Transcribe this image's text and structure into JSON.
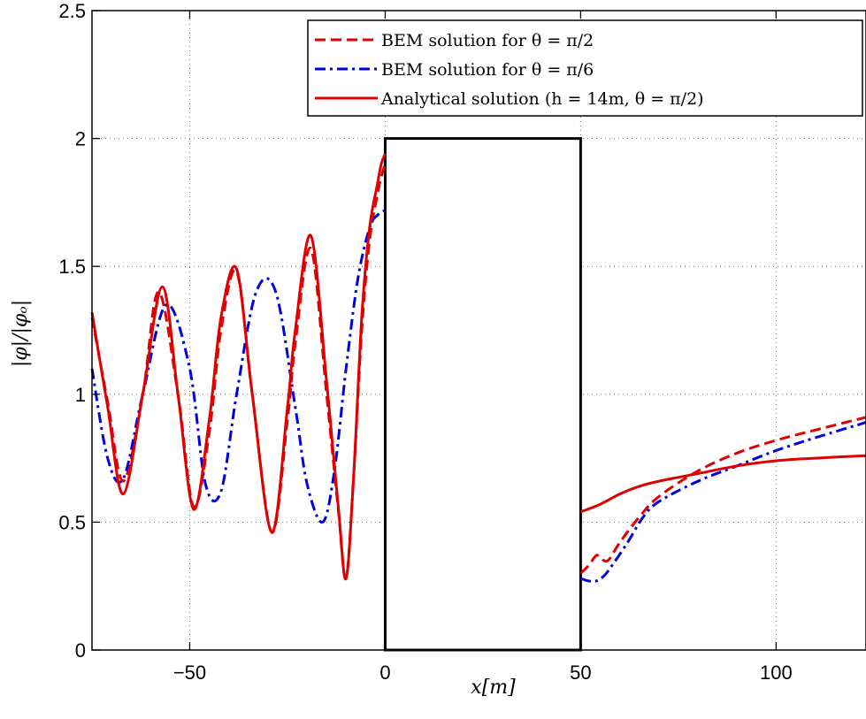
{
  "chart_data": {
    "type": "line",
    "xlabel": "x[m]",
    "ylabel": "|φ|/|φₒ|",
    "xlim": [
      -75,
      123
    ],
    "ylim": [
      0,
      2.5
    ],
    "x_ticks": [
      -50,
      0,
      50,
      100
    ],
    "x_tick_labels": [
      "−50",
      "0",
      "50",
      "100"
    ],
    "y_ticks": [
      0,
      0.5,
      1,
      1.5,
      2,
      2.5
    ],
    "y_tick_labels": [
      "0",
      "0.5",
      "1",
      "1.5",
      "2",
      "2.5"
    ],
    "grid": true,
    "legend_position": "top-right",
    "obstacle": {
      "x": [
        0,
        50
      ],
      "height": 2.0
    },
    "series": [
      {
        "name": "BEM solution for θ = π/2",
        "color": "#e00000",
        "style": "dashed",
        "x": [
          -75,
          -71,
          -67,
          -62,
          -58,
          -53,
          -49,
          -45,
          -42,
          -38,
          -34,
          -29,
          -25,
          -23,
          -19,
          -15,
          -12,
          -10,
          -8,
          -6,
          -4,
          -2,
          -1,
          0,
          50,
          52,
          54,
          55,
          57,
          60,
          65,
          70,
          80,
          90,
          100,
          110,
          123
        ],
        "y": [
          1.3,
          0.97,
          0.66,
          1.0,
          1.4,
          1.0,
          0.56,
          0.85,
          1.25,
          1.48,
          1.0,
          0.46,
          0.9,
          1.2,
          1.57,
          1.0,
          0.55,
          0.28,
          0.7,
          1.25,
          1.6,
          1.78,
          1.85,
          1.9,
          0.3,
          0.33,
          0.37,
          0.36,
          0.35,
          0.42,
          0.52,
          0.6,
          0.7,
          0.77,
          0.82,
          0.86,
          0.91
        ]
      },
      {
        "name": "BEM solution for θ = π/6",
        "color": "#0000e0",
        "style": "dashdot",
        "x": [
          -75,
          -71,
          -67,
          -62,
          -56,
          -50,
          -46,
          -42,
          -38,
          -33,
          -28,
          -23,
          -20,
          -16,
          -13,
          -10,
          -7,
          -4,
          -2,
          0,
          50,
          52,
          54,
          56,
          58,
          62,
          66,
          70,
          80,
          90,
          100,
          110,
          123
        ],
        "y": [
          1.1,
          0.75,
          0.67,
          1.0,
          1.35,
          1.1,
          0.65,
          0.62,
          1.0,
          1.4,
          1.4,
          0.95,
          0.65,
          0.5,
          0.7,
          1.1,
          1.45,
          1.65,
          1.7,
          1.72,
          0.28,
          0.27,
          0.27,
          0.29,
          0.33,
          0.42,
          0.52,
          0.58,
          0.66,
          0.72,
          0.78,
          0.83,
          0.89
        ]
      },
      {
        "name": "Analytical solution (h = 14m, θ = π/2)",
        "color": "#e00000",
        "style": "solid",
        "x": [
          -75,
          -71,
          -67,
          -62,
          -57,
          -53,
          -49,
          -45,
          -42,
          -38,
          -34,
          -29,
          -25,
          -23,
          -19,
          -15,
          -12,
          -10,
          -8,
          -6,
          -4,
          -2,
          -1,
          0,
          50,
          55,
          60,
          65,
          70,
          80,
          90,
          100,
          110,
          123
        ],
        "y": [
          1.32,
          0.95,
          0.61,
          1.0,
          1.42,
          1.0,
          0.55,
          0.9,
          1.3,
          1.49,
          1.0,
          0.46,
          0.95,
          1.25,
          1.62,
          1.05,
          0.56,
          0.28,
          0.7,
          1.3,
          1.65,
          1.82,
          1.9,
          1.94,
          0.54,
          0.57,
          0.61,
          0.64,
          0.66,
          0.69,
          0.72,
          0.74,
          0.75,
          0.76
        ]
      }
    ]
  }
}
